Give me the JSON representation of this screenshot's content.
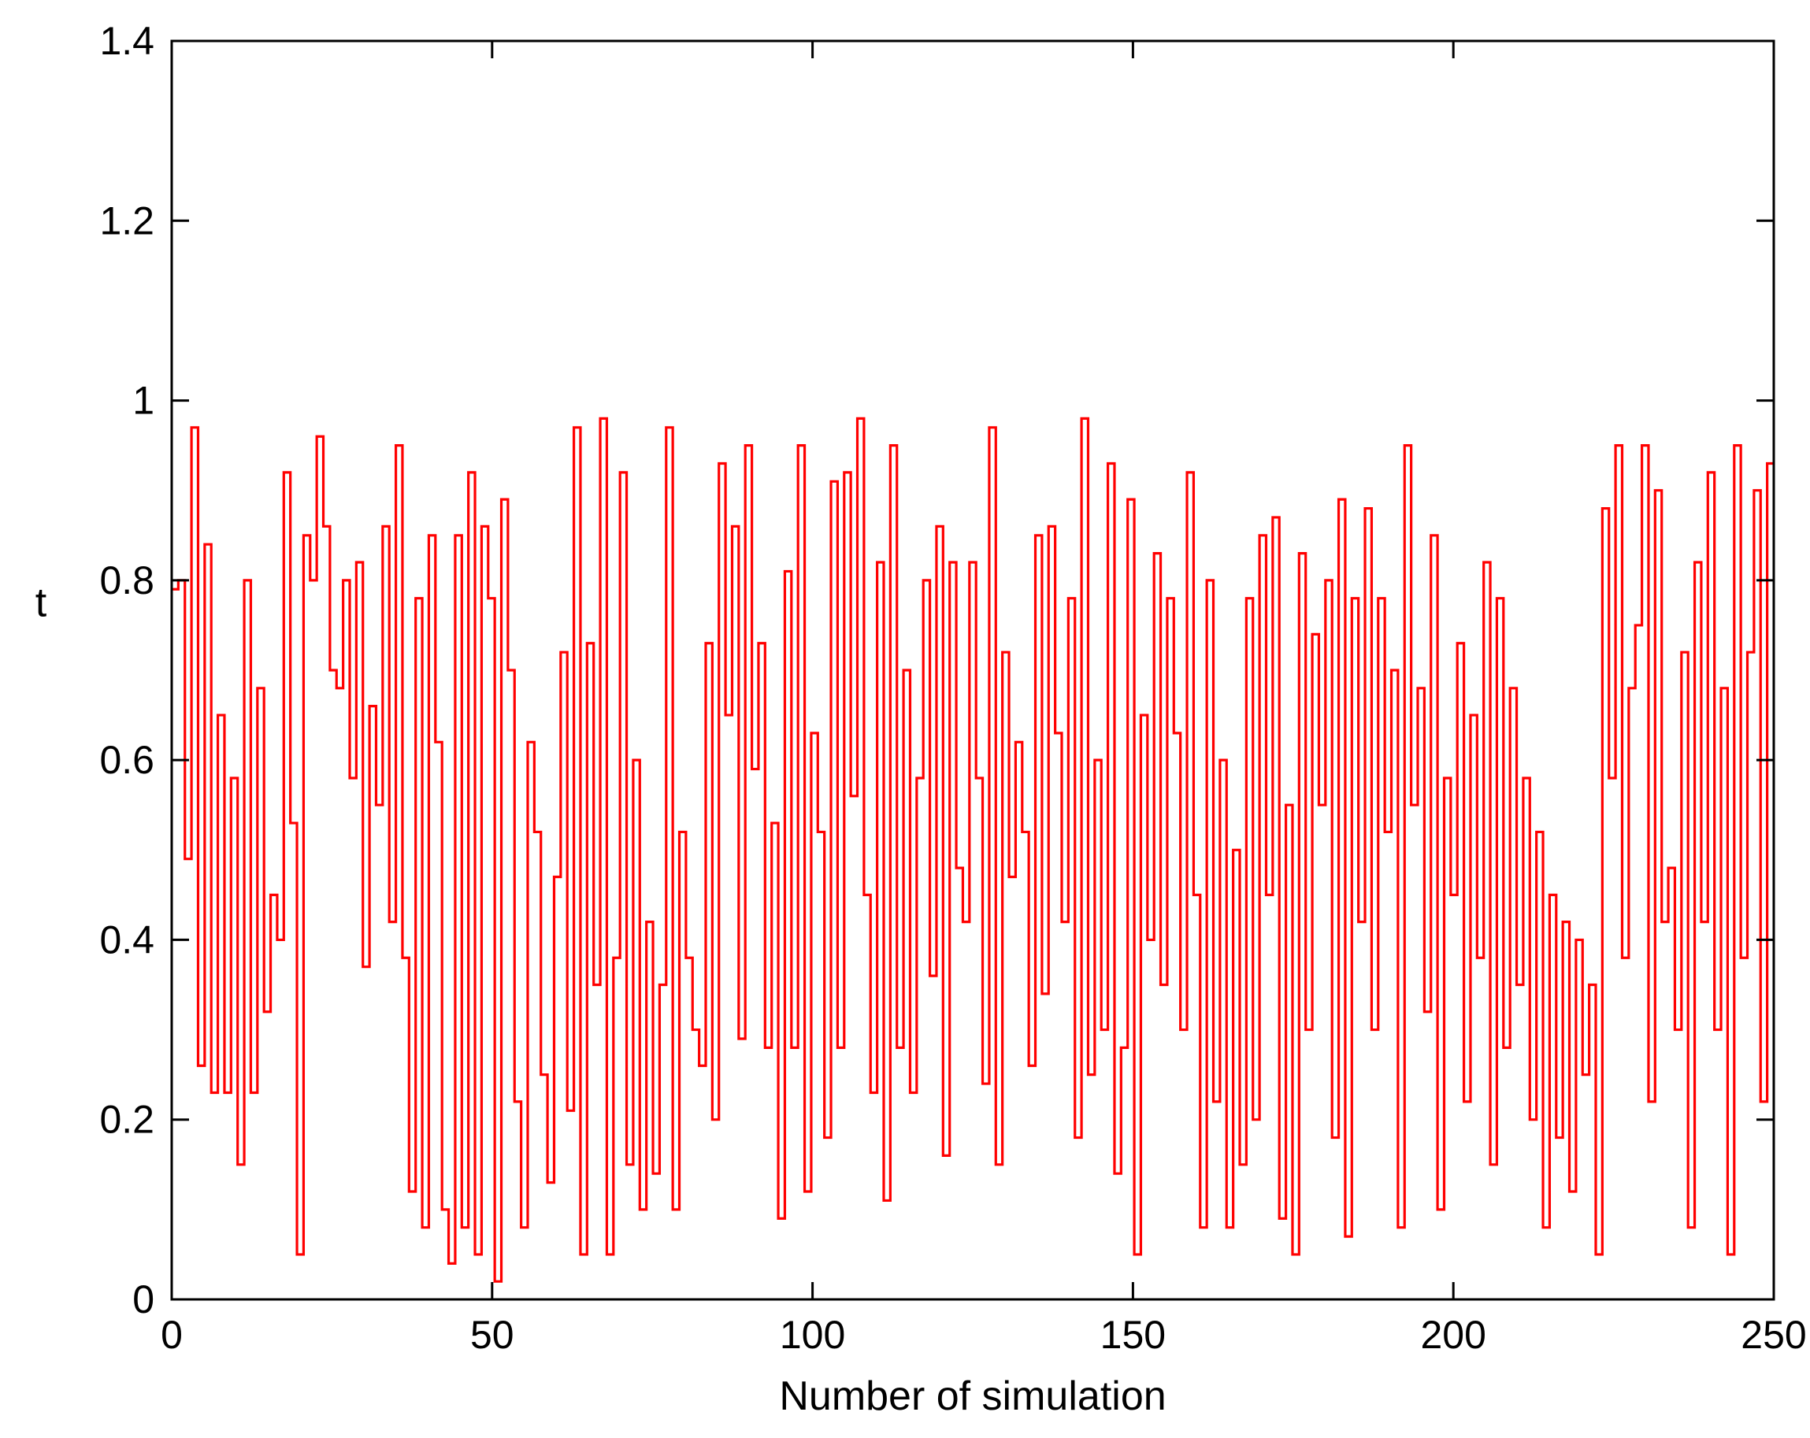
{
  "chart_data": {
    "type": "line",
    "xlabel": "Number of simulation",
    "ylabel": "t",
    "xlim": [
      0,
      250
    ],
    "ylim": [
      0,
      1.4
    ],
    "xticks": [
      0,
      50,
      100,
      150,
      200,
      250
    ],
    "yticks": [
      0,
      0.2,
      0.4,
      0.6,
      0.8,
      1,
      1.2,
      1.4
    ],
    "xtick_labels": [
      "0",
      "50",
      "100",
      "150",
      "200",
      "250"
    ],
    "ytick_labels": [
      "0",
      "0.2",
      "0.4",
      "0.6",
      "0.8",
      "1",
      "1.2",
      "1.4"
    ],
    "grid": false,
    "line_color": "#ff0000",
    "step": true,
    "series": [
      {
        "values": [
          0.79,
          0.8,
          0.49,
          0.97,
          0.26,
          0.84,
          0.23,
          0.65,
          0.23,
          0.58,
          0.15,
          0.8,
          0.23,
          0.68,
          0.32,
          0.45,
          0.4,
          0.92,
          0.53,
          0.05,
          0.85,
          0.8,
          0.96,
          0.86,
          0.7,
          0.68,
          0.8,
          0.58,
          0.82,
          0.37,
          0.66,
          0.55,
          0.86,
          0.42,
          0.95,
          0.38,
          0.12,
          0.78,
          0.08,
          0.85,
          0.62,
          0.1,
          0.04,
          0.85,
          0.08,
          0.92,
          0.05,
          0.86,
          0.78,
          0.02,
          0.89,
          0.7,
          0.22,
          0.08,
          0.62,
          0.52,
          0.25,
          0.13,
          0.47,
          0.72,
          0.21,
          0.97,
          0.05,
          0.73,
          0.35,
          0.98,
          0.05,
          0.38,
          0.92,
          0.15,
          0.6,
          0.1,
          0.42,
          0.14,
          0.35,
          0.97,
          0.1,
          0.52,
          0.38,
          0.3,
          0.26,
          0.73,
          0.2,
          0.93,
          0.65,
          0.86,
          0.29,
          0.95,
          0.59,
          0.73,
          0.28,
          0.53,
          0.09,
          0.81,
          0.28,
          0.95,
          0.12,
          0.63,
          0.52,
          0.18,
          0.91,
          0.28,
          0.92,
          0.56,
          0.98,
          0.45,
          0.23,
          0.82,
          0.11,
          0.95,
          0.28,
          0.7,
          0.23,
          0.58,
          0.8,
          0.36,
          0.86,
          0.16,
          0.82,
          0.48,
          0.42,
          0.82,
          0.58,
          0.24,
          0.97,
          0.15,
          0.72,
          0.47,
          0.62,
          0.52,
          0.26,
          0.85,
          0.34,
          0.86,
          0.63,
          0.42,
          0.78,
          0.18,
          0.98,
          0.25,
          0.6,
          0.3,
          0.93,
          0.14,
          0.28,
          0.89,
          0.05,
          0.65,
          0.4,
          0.83,
          0.35,
          0.78,
          0.63,
          0.3,
          0.92,
          0.45,
          0.08,
          0.8,
          0.22,
          0.6,
          0.08,
          0.5,
          0.15,
          0.78,
          0.2,
          0.85,
          0.45,
          0.87,
          0.09,
          0.55,
          0.05,
          0.83,
          0.3,
          0.74,
          0.55,
          0.8,
          0.18,
          0.89,
          0.07,
          0.78,
          0.42,
          0.88,
          0.3,
          0.78,
          0.52,
          0.7,
          0.08,
          0.95,
          0.55,
          0.68,
          0.32,
          0.85,
          0.1,
          0.58,
          0.45,
          0.73,
          0.22,
          0.65,
          0.38,
          0.82,
          0.15,
          0.78,
          0.28,
          0.68,
          0.35,
          0.58,
          0.2,
          0.52,
          0.08,
          0.45,
          0.18,
          0.42,
          0.12,
          0.4,
          0.25,
          0.35,
          0.05,
          0.88,
          0.58,
          0.95,
          0.38,
          0.68,
          0.75,
          0.95,
          0.22,
          0.9,
          0.42,
          0.48,
          0.3,
          0.72,
          0.08,
          0.82,
          0.42,
          0.92,
          0.3,
          0.68,
          0.05,
          0.95,
          0.38,
          0.72,
          0.9,
          0.22,
          0.93
        ]
      }
    ]
  }
}
